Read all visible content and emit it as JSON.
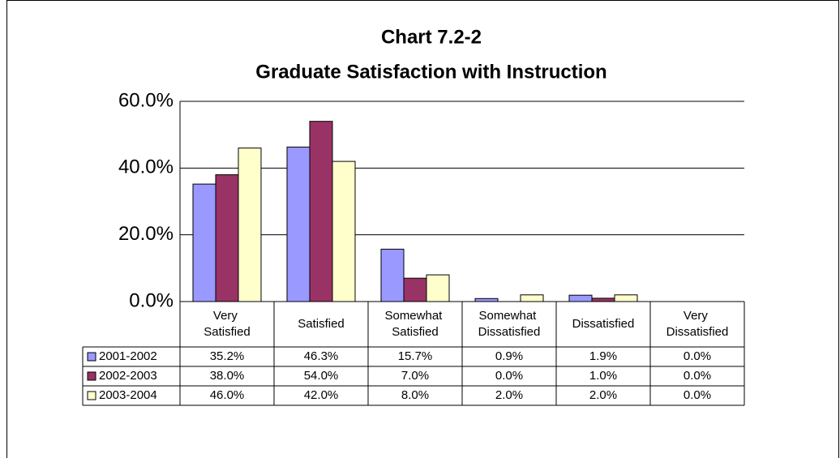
{
  "chart_data": {
    "type": "bar",
    "title": "Chart 7.2-2",
    "subtitle": "Graduate Satisfaction with Instruction",
    "categories": [
      "Very Satisfied",
      "Satisfied",
      "Somewhat Satisfied",
      "Somewhat Dissatisfied",
      "Dissatisfied",
      "Very Dissatisfied"
    ],
    "series": [
      {
        "name": "2001-2002",
        "color": "#9999ff",
        "values": [
          35.2,
          46.3,
          15.7,
          0.9,
          1.9,
          0.0
        ],
        "value_labels": [
          "35.2%",
          "46.3%",
          "15.7%",
          "0.9%",
          "1.9%",
          "0.0%"
        ]
      },
      {
        "name": "2002-2003",
        "color": "#993366",
        "values": [
          38.0,
          54.0,
          7.0,
          0.0,
          1.0,
          0.0
        ],
        "value_labels": [
          "38.0%",
          "54.0%",
          "7.0%",
          "0.0%",
          "1.0%",
          "0.0%"
        ]
      },
      {
        "name": "2003-2004",
        "color": "#ffffcc",
        "values": [
          46.0,
          42.0,
          8.0,
          2.0,
          2.0,
          0.0
        ],
        "value_labels": [
          "46.0%",
          "42.0%",
          "8.0%",
          "2.0%",
          "2.0%",
          "0.0%"
        ]
      }
    ],
    "ylim": [
      0,
      60
    ],
    "yticks": [
      {
        "value": 0,
        "label": "0.0%"
      },
      {
        "value": 20,
        "label": "20.0%"
      },
      {
        "value": 40,
        "label": "40.0%"
      },
      {
        "value": 60,
        "label": "60.0%"
      }
    ],
    "grid": true
  }
}
